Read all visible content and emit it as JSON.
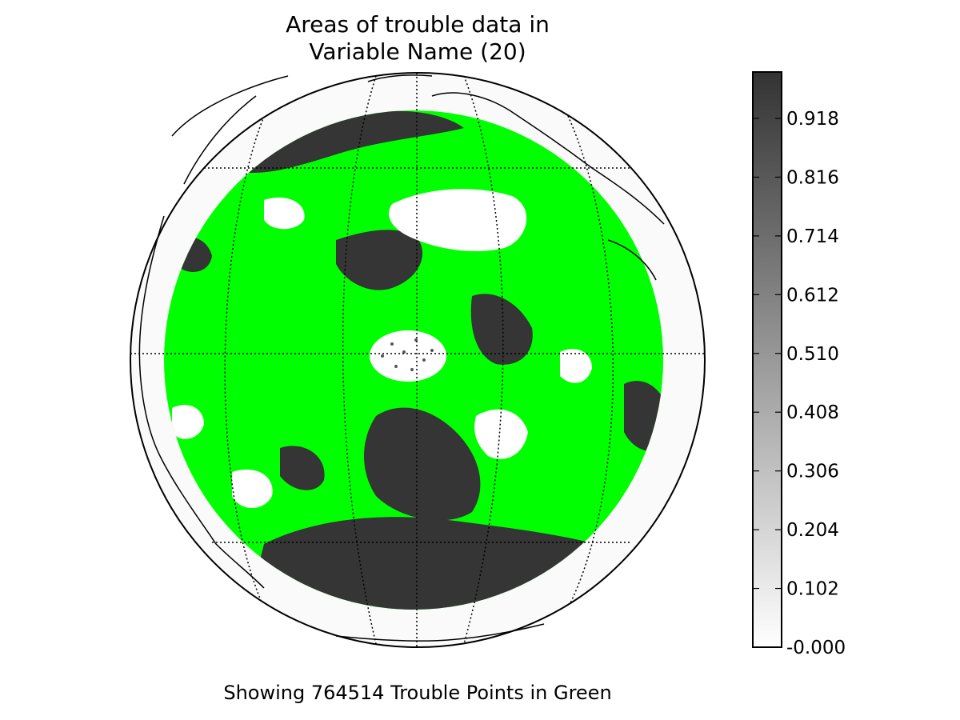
{
  "title": {
    "line1": "Areas of trouble data in",
    "line2": "Variable Name (20)"
  },
  "caption": "Showing 764514 Trouble Points in Green",
  "colorbar": {
    "ticks": [
      "0.918",
      "0.816",
      "0.714",
      "0.612",
      "0.510",
      "0.408",
      "0.306",
      "0.204",
      "0.102",
      "-0.000"
    ],
    "min": 0.0,
    "max": 1.0,
    "colormap": "greys"
  },
  "map": {
    "projection": "orthographic",
    "trouble_points_count": 764514,
    "colors": {
      "trouble_points": "#00ff00",
      "field_high": "#353535",
      "field_low": "#ffffff",
      "ocean_outside": "#fafafa",
      "coastline": "#000000"
    }
  }
}
